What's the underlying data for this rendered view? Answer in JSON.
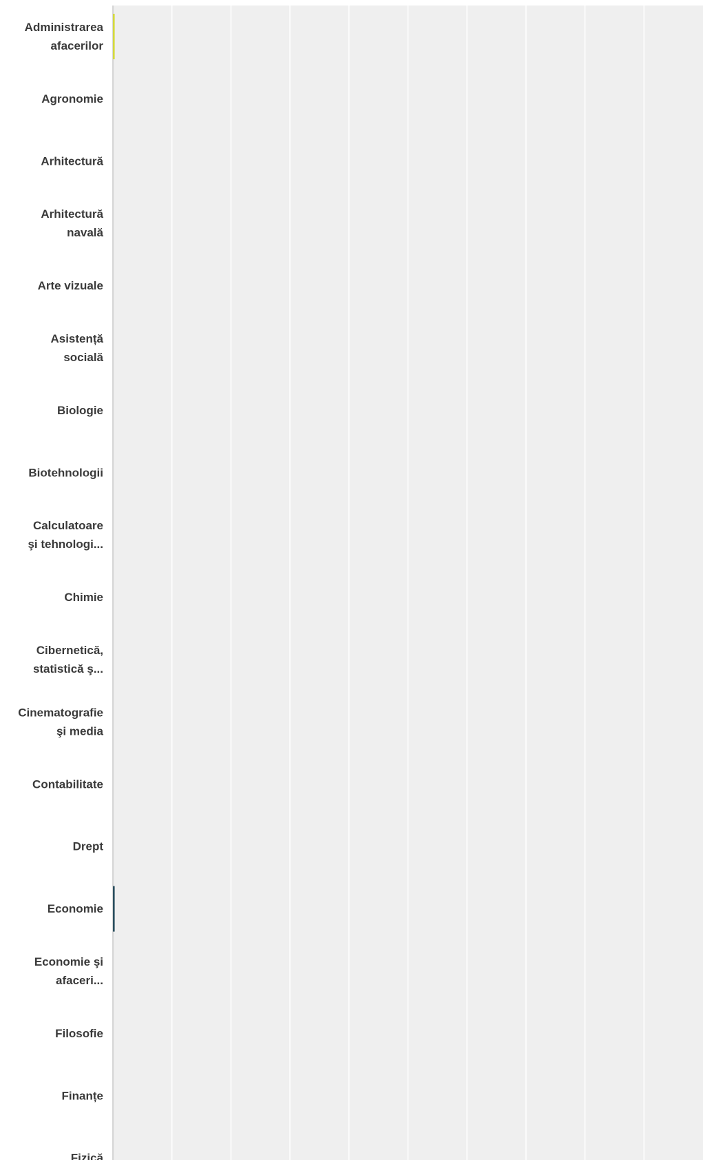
{
  "colors": {
    "plot_background": "#efefef",
    "gridline": "#ffffff",
    "axis_line": "#c8c8c8",
    "label_text": "#3a3a3a"
  },
  "chart_data": {
    "type": "bar",
    "orientation": "horizontal",
    "grid": true,
    "xlim": [
      0,
      100
    ],
    "x_divisions": 10,
    "categories": [
      [
        "Administrarea",
        "afacerilor"
      ],
      [
        "Agronomie"
      ],
      [
        "Arhitectură"
      ],
      [
        "Arhitectură",
        "navală"
      ],
      [
        "Arte vizuale"
      ],
      [
        "Asistență",
        "socială"
      ],
      [
        "Biologie"
      ],
      [
        "Biotehnologii"
      ],
      [
        "Calculatoare",
        "şi tehnologi..."
      ],
      [
        "Chimie"
      ],
      [
        "Cibernetică,",
        "statistică ş..."
      ],
      [
        "Cinematografie",
        "şi media"
      ],
      [
        "Contabilitate"
      ],
      [
        "Drept"
      ],
      [
        "Economie"
      ],
      [
        "Economie şi",
        "afaceri..."
      ],
      [
        "Filosofie"
      ],
      [
        "Finanțe"
      ],
      [
        "Fizică"
      ]
    ],
    "values": [
      0.3,
      0,
      0,
      0,
      0,
      0,
      0,
      0,
      0,
      0,
      0,
      0,
      0,
      0,
      0.3,
      0,
      0,
      0,
      0
    ],
    "bar_colors": [
      "#d4d93c",
      "",
      "",
      "",
      "",
      "",
      "",
      "",
      "",
      "",
      "",
      "",
      "",
      "",
      "#2a4e5e",
      "",
      "",
      "",
      ""
    ]
  }
}
